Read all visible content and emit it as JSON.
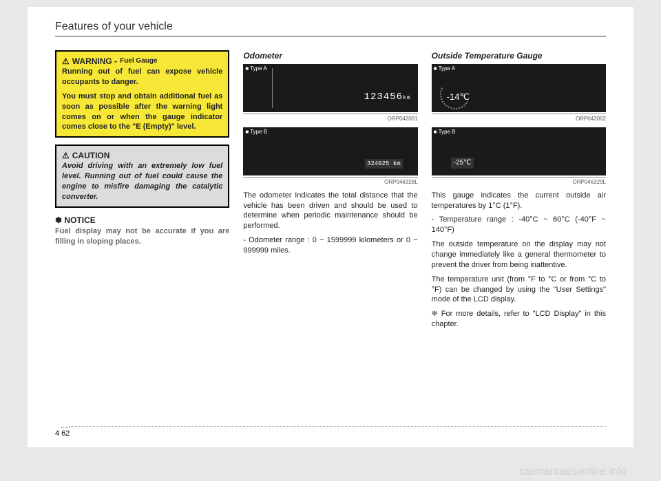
{
  "header": "Features of your vehicle",
  "page_section": "4",
  "page_number": "62",
  "watermark": "carmanualsonline.info",
  "col1": {
    "warning": {
      "icon": "⚠",
      "title": "WARNING - ",
      "subtitle": "Fuel Gauge",
      "p1": "Running out of fuel can expose vehicle occupants to danger.",
      "p2": "You must stop and obtain additional fuel as soon as possible after the warning light comes on or when the gauge indicator comes close to the \"E (Empty)\" level."
    },
    "caution": {
      "icon": "⚠",
      "title": "CAUTION",
      "body": "Avoid driving with an extremely low fuel level. Running out of fuel could cause the engine to misfire damaging the catalytic converter."
    },
    "notice": {
      "mark": "✽",
      "title": "NOTICE",
      "body": "Fuel display may not be accurate if you are filling in sloping places."
    }
  },
  "col2": {
    "title": "Odometer",
    "typeA": "■ Type A",
    "odoA": "123456",
    "kmA": "km",
    "codeA": "ORP042061",
    "typeB": "■ Type B",
    "odoB": "324025 km",
    "codeB": "ORP046328L",
    "p1": "The odometer Indicates the total distance that the vehicle has been driven and should be used to determine when periodic maintenance should be performed.",
    "p2": "- Odometer range : 0 ~ 1599999 kilometers or 0 ~ 999999 miles."
  },
  "col3": {
    "title": "Outside Temperature Gauge",
    "typeA": "■ Type A",
    "tempA": "-14℃",
    "codeA": "ORP042062",
    "typeB": "■ Type B",
    "tempB": "-25℃",
    "codeB": "ORP046329L",
    "p1": "This gauge indicates the current outside air temperatures by 1°C (1°F).",
    "p2": "- Temperature range : -40°C ~ 60°C (-40°F ~ 140°F)",
    "p3": "The outside temperature on the display may not change immediately like a general thermometer to prevent the driver from being inattentive.",
    "p4": "The temperature unit (from °F to °C or from °C to °F) can be changed by using the \"User Settings\" mode of the LCD display.",
    "p5": "❈ For more details, refer to \"LCD Display\" in this chapter."
  }
}
